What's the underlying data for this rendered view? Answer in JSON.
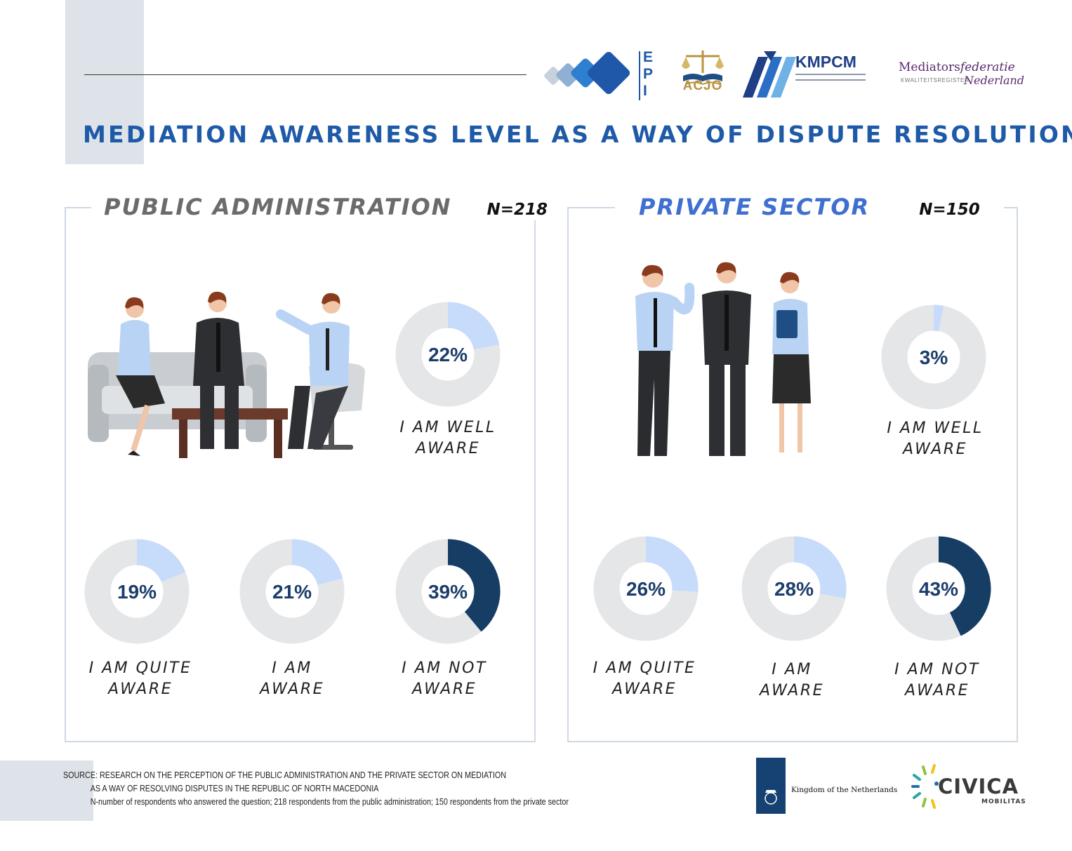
{
  "title": "MEDIATION AWARENESS LEVEL AS A WAY OF DISPUTE RESOLUTION",
  "logos": {
    "epi": "EPI",
    "acjo": "ACJO",
    "kmpcm": "KMPCM",
    "mediators_1": "Mediators",
    "mediators_2": "federatie",
    "mediators_3": "Nederland",
    "mediators_sub": "KWALITEITSREGISTER",
    "netherlands": "Kingdom of the Netherlands",
    "civica": "CIVICA",
    "civica_sub": "MOBILITAS"
  },
  "colors": {
    "accent": "#1e5aa8",
    "light_fill": "#c7dbfb",
    "dark_fill": "#163d63",
    "track": "#e5e6e8",
    "public_title": "#6b6b6b",
    "private_title": "#3f6fd0"
  },
  "panels": {
    "public": {
      "title": "PUBLIC ADMINISTRATION",
      "n": "N=218"
    },
    "private": {
      "title": "PRIVATE SECTOR",
      "n": "N=150"
    }
  },
  "chart_data": [
    {
      "type": "pie",
      "title": "PUBLIC ADMINISTRATION",
      "subtitle": "N=218",
      "slices": [
        {
          "label_1": "I AM WELL",
          "label_2": "AWARE",
          "value": 22,
          "display": "22%",
          "color": "#c7dbfb"
        },
        {
          "label_1": "I AM QUITE",
          "label_2": "AWARE",
          "value": 19,
          "display": "19%",
          "color": "#c7dbfb"
        },
        {
          "label_1": "I AM",
          "label_2": "AWARE",
          "value": 21,
          "display": "21%",
          "color": "#c7dbfb"
        },
        {
          "label_1": "I AM NOT",
          "label_2": "AWARE",
          "value": 39,
          "display": "39%",
          "color": "#163d63"
        }
      ]
    },
    {
      "type": "pie",
      "title": "PRIVATE SECTOR",
      "subtitle": "N=150",
      "slices": [
        {
          "label_1": "I AM WELL",
          "label_2": "AWARE",
          "value": 3,
          "display": "3%",
          "color": "#c7dbfb"
        },
        {
          "label_1": "I AM QUITE",
          "label_2": "AWARE",
          "value": 26,
          "display": "26%",
          "color": "#c7dbfb"
        },
        {
          "label_1": "I AM",
          "label_2": "AWARE",
          "value": 28,
          "display": "28%",
          "color": "#c7dbfb"
        },
        {
          "label_1": "I AM NOT",
          "label_2": "AWARE",
          "value": 43,
          "display": "43%",
          "color": "#163d63"
        }
      ]
    }
  ],
  "footer": {
    "line1": "SOURCE: RESEARCH ON THE PERCEPTION OF THE PUBLIC ADMINISTRATION AND THE PRIVATE SECTOR ON MEDIATION",
    "line2": "AS A WAY OF RESOLVING DISPUTES IN THE REPUBLIC OF NORTH MACEDONIA",
    "line3": "N-number of respondents who answered the question; 218 respondents from the public administration; 150 respondents from the private sector"
  }
}
